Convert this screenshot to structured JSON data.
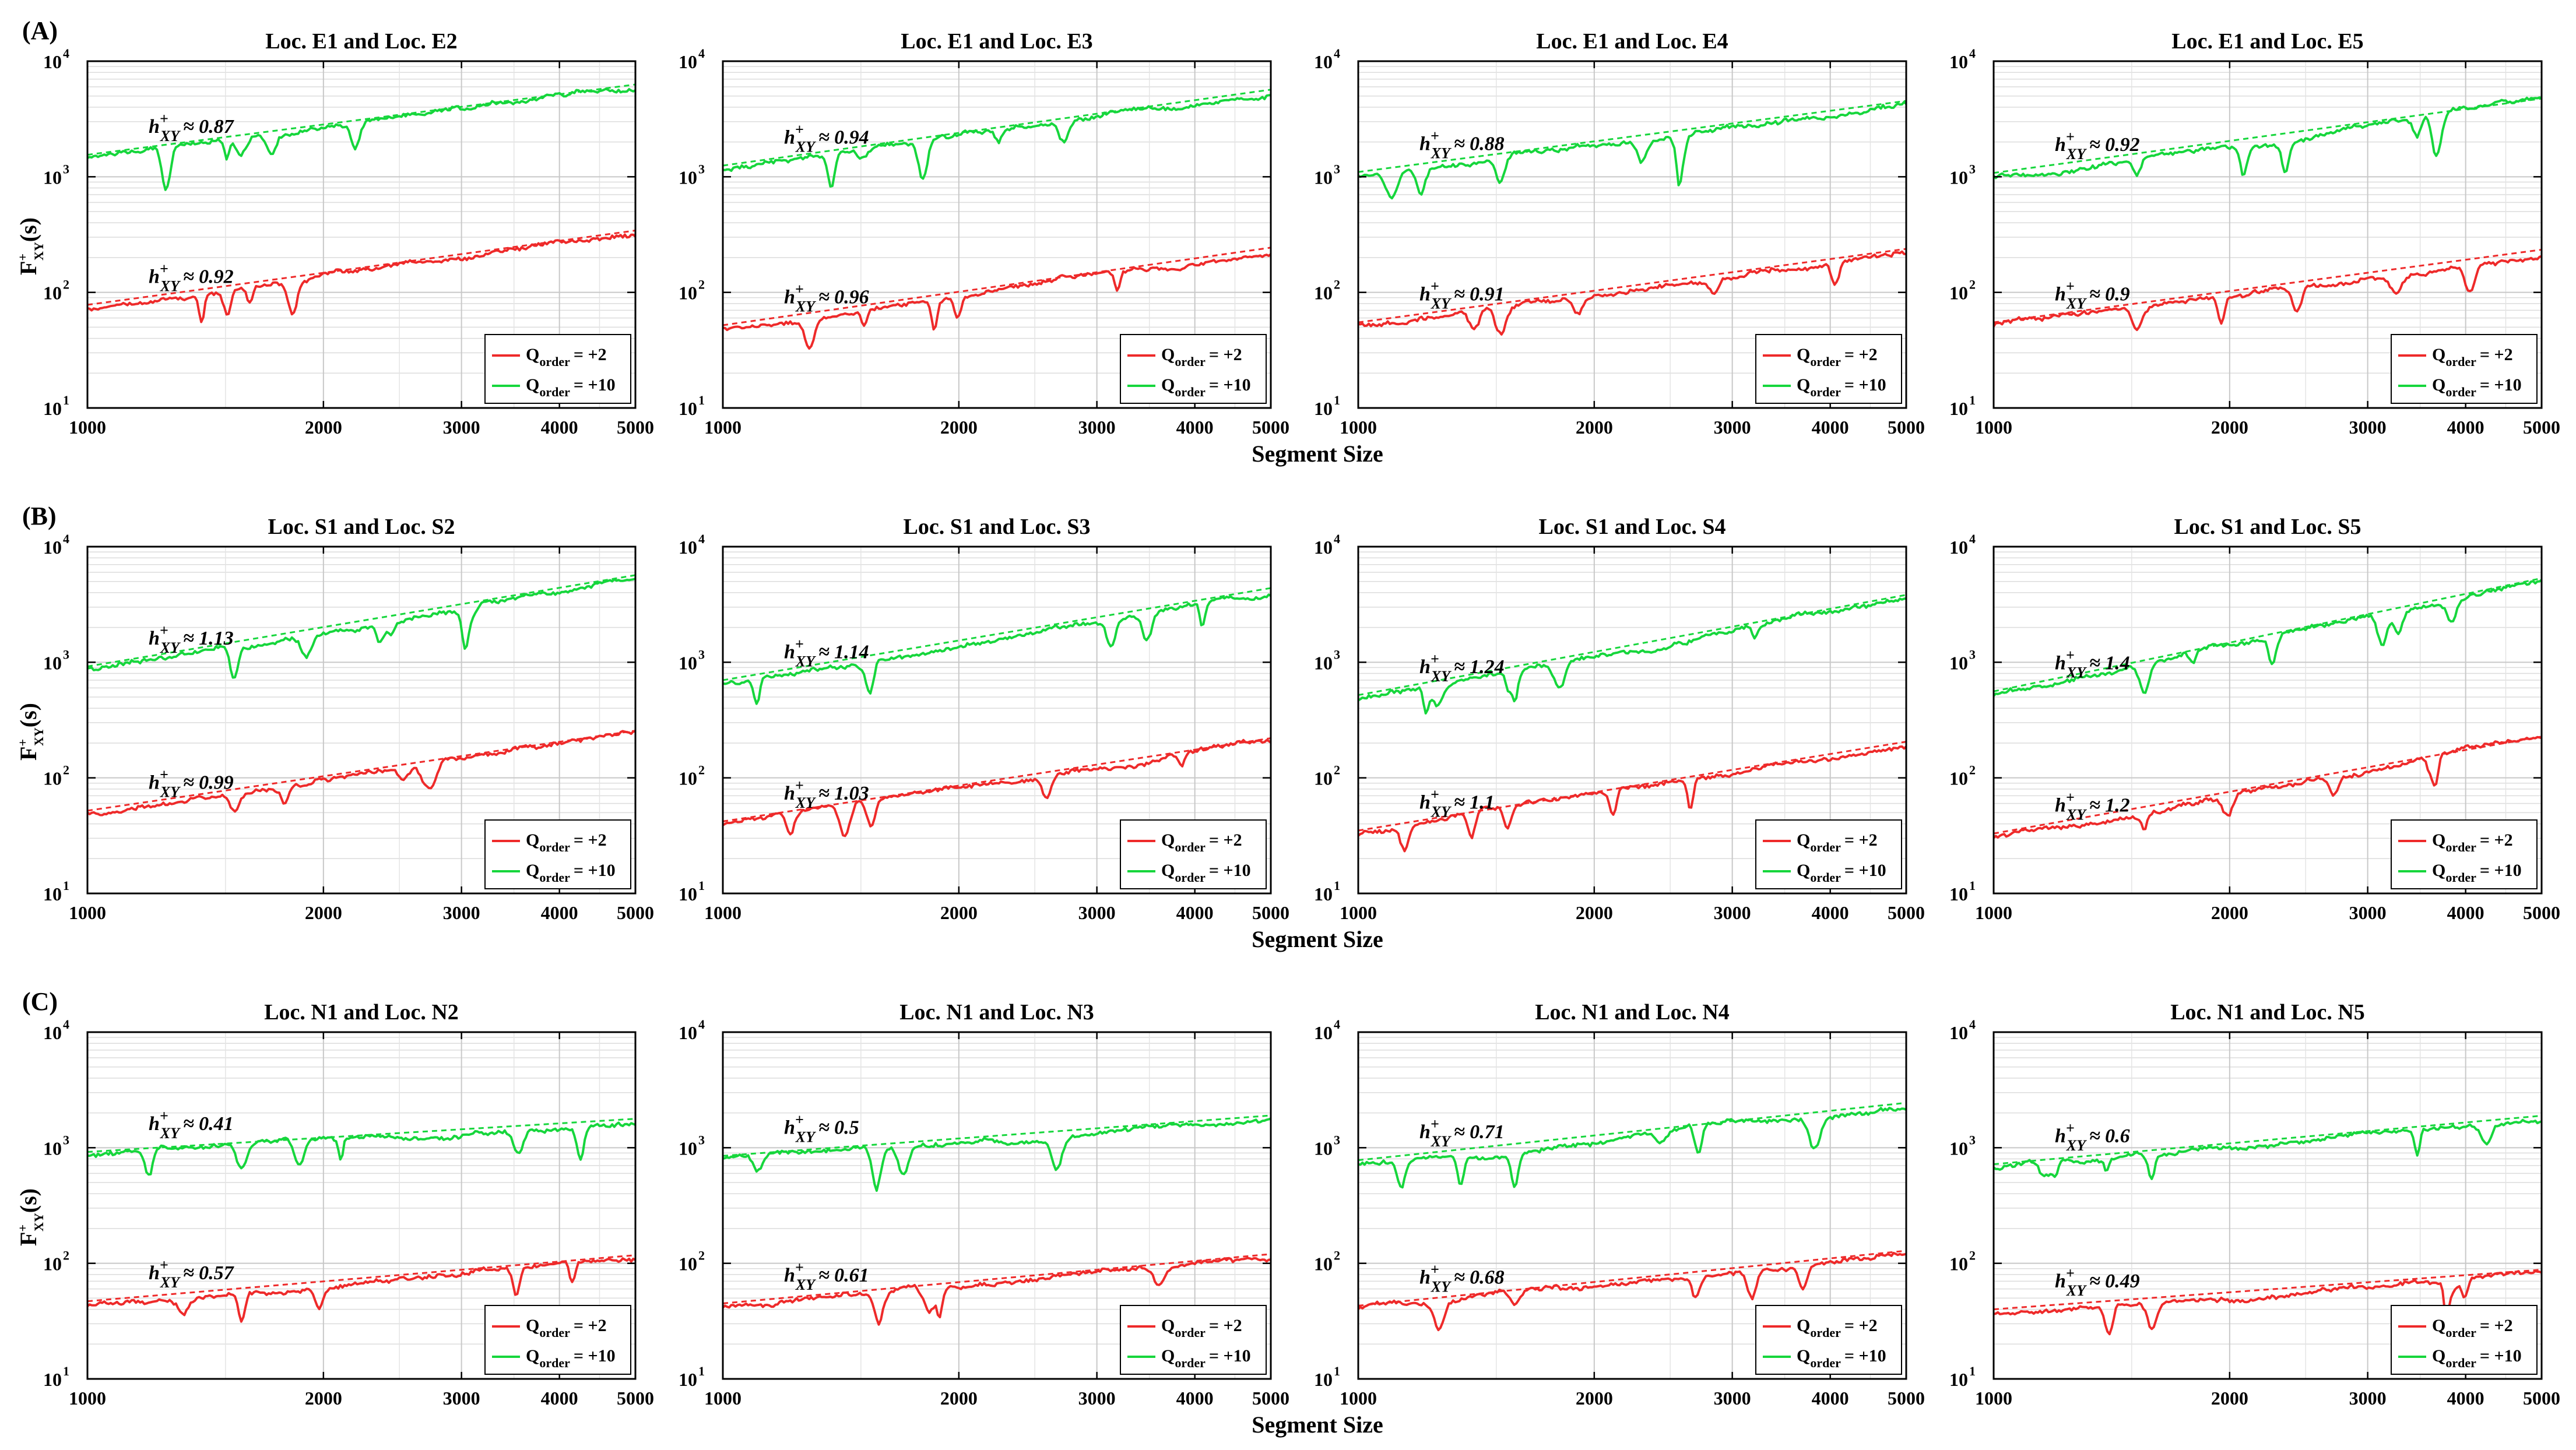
{
  "chart_data": {
    "type": "line",
    "xlabel": "Segment Size",
    "ylabel": "F",
    "ylabel_sup": "+",
    "ylabel_sub": "XY",
    "ylabel_arg": "(s)",
    "x_scale": "log",
    "y_scale": "log",
    "xlim": [
      1000,
      5000
    ],
    "ylim": [
      10,
      10000
    ],
    "x_ticks": [
      1000,
      2000,
      3000,
      4000,
      5000
    ],
    "x_tick_labels": [
      "1000",
      "2000",
      "3000",
      "4000",
      "5000"
    ],
    "y_tick_base": "10",
    "y_tick_exponents": [
      "1",
      "2",
      "3",
      "4"
    ],
    "grid": true,
    "legend_position": "bottom-right",
    "legend": [
      "Q_order = +2",
      "Q_order = +10"
    ],
    "legend_q": "Q",
    "legend_sub": "order",
    "legend_vals": [
      "= +2",
      "= +10"
    ],
    "series_colors": {
      "q2": "#ee2a2a",
      "q10": "#16d63c"
    },
    "annotation_symbol": "h",
    "annotation_sup": "+",
    "annotation_sub": "XY",
    "annotation_prefix": "≈ ",
    "rows": [
      {
        "label": "(A)",
        "panels": [
          {
            "title": "Loc. E1 and Loc. E2",
            "q10": {
              "start": 1550,
              "h": "0.87",
              "hv": 0.87
            },
            "q2": {
              "start": 78,
              "h": "0.92",
              "hv": 0.92
            }
          },
          {
            "title": "Loc. E1 and Loc. E3",
            "q10": {
              "start": 1250,
              "h": "0.94",
              "hv": 0.94
            },
            "q2": {
              "start": 52,
              "h": "0.96",
              "hv": 0.96
            }
          },
          {
            "title": "Loc. E1 and Loc. E4",
            "q10": {
              "start": 1100,
              "h": "0.88",
              "hv": 0.88
            },
            "q2": {
              "start": 55,
              "h": "0.91",
              "hv": 0.91
            }
          },
          {
            "title": "Loc. E1 and Loc. E5",
            "q10": {
              "start": 1080,
              "h": "0.92",
              "hv": 0.92
            },
            "q2": {
              "start": 55,
              "h": "0.9",
              "hv": 0.9
            }
          }
        ]
      },
      {
        "label": "(B)",
        "panels": [
          {
            "title": "Loc. S1 and Loc. S2",
            "q10": {
              "start": 920,
              "h": "1.13",
              "hv": 1.13
            },
            "q2": {
              "start": 52,
              "h": "0.99",
              "hv": 0.99
            }
          },
          {
            "title": "Loc. S1 and Loc. S3",
            "q10": {
              "start": 700,
              "h": "1.14",
              "hv": 1.14
            },
            "q2": {
              "start": 42,
              "h": "1.03",
              "hv": 1.03
            }
          },
          {
            "title": "Loc. S1 and Loc. S4",
            "q10": {
              "start": 520,
              "h": "1.24",
              "hv": 1.24
            },
            "q2": {
              "start": 35,
              "h": "1.1",
              "hv": 1.1
            }
          },
          {
            "title": "Loc. S1 and Loc. S5",
            "q10": {
              "start": 560,
              "h": "1.4",
              "hv": 1.4
            },
            "q2": {
              "start": 33,
              "h": "1.2",
              "hv": 1.2
            }
          }
        ]
      },
      {
        "label": "(C)",
        "panels": [
          {
            "title": "Loc. N1 and Loc. N2",
            "q10": {
              "start": 920,
              "h": "0.41",
              "hv": 0.41
            },
            "q2": {
              "start": 47,
              "h": "0.57",
              "hv": 0.57
            }
          },
          {
            "title": "Loc. N1 and Loc. N3",
            "q10": {
              "start": 850,
              "h": "0.5",
              "hv": 0.5
            },
            "q2": {
              "start": 45,
              "h": "0.61",
              "hv": 0.61
            }
          },
          {
            "title": "Loc. N1 and Loc. N4",
            "q10": {
              "start": 780,
              "h": "0.71",
              "hv": 0.71
            },
            "q2": {
              "start": 43,
              "h": "0.68",
              "hv": 0.68
            }
          },
          {
            "title": "Loc. N1 and Loc. N5",
            "q10": {
              "start": 720,
              "h": "0.6",
              "hv": 0.6
            },
            "q2": {
              "start": 40,
              "h": "0.49",
              "hv": 0.49
            }
          }
        ]
      }
    ]
  }
}
